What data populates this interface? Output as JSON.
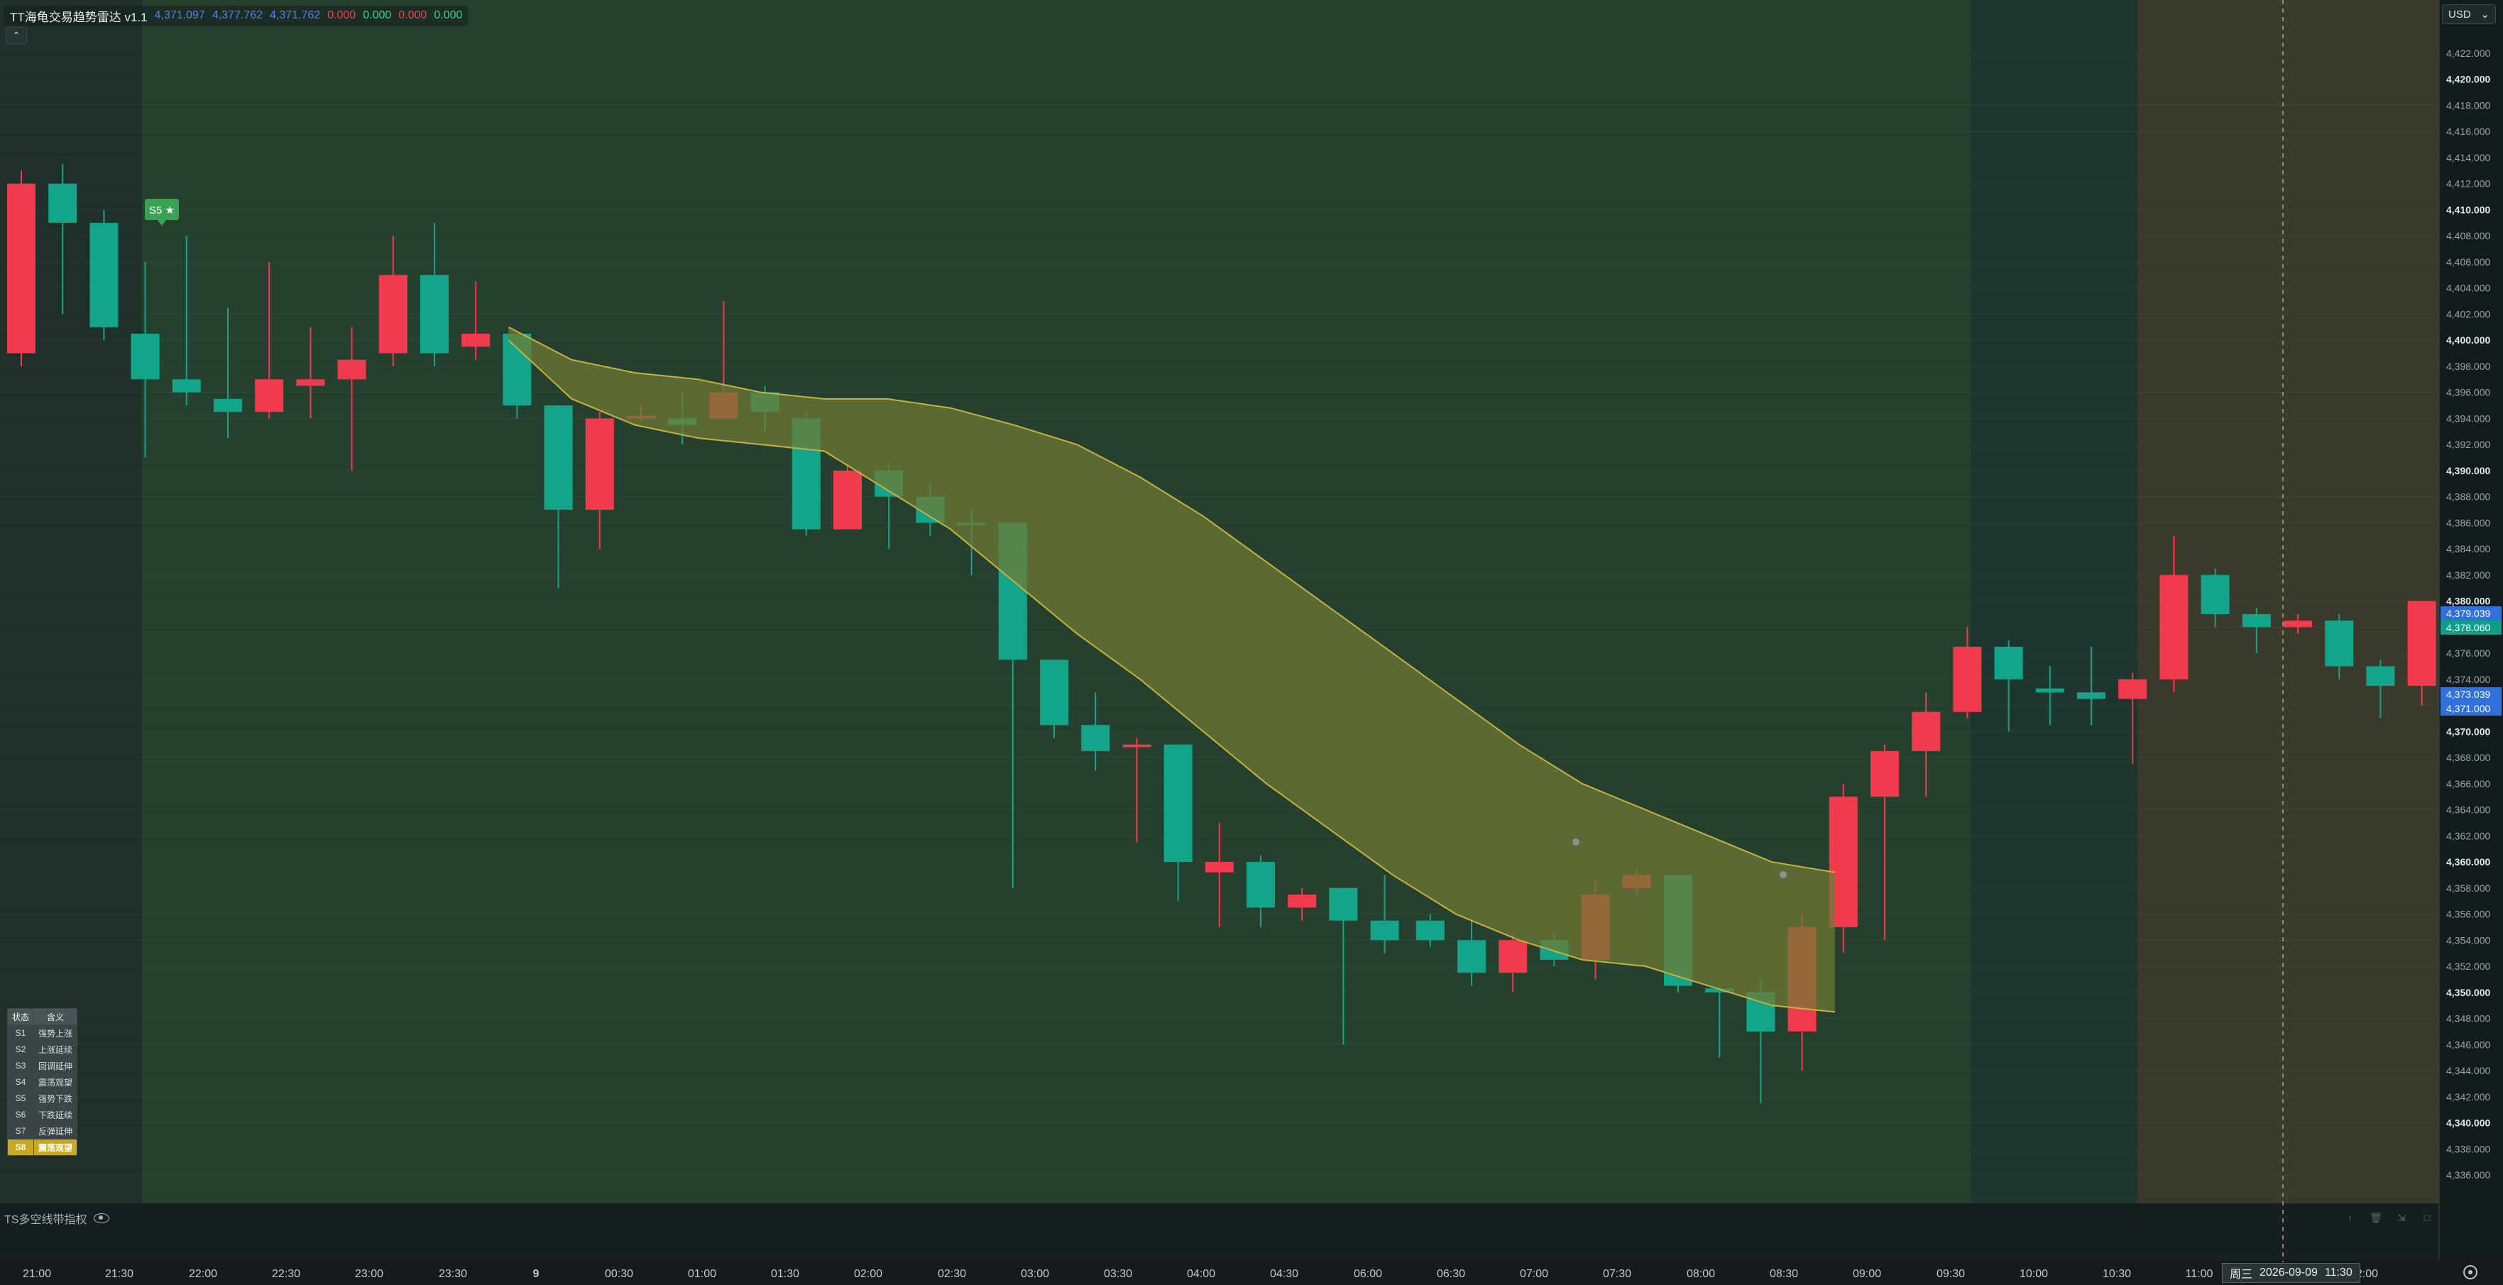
{
  "legend": {
    "title": "TT海龟交易趋势雷达 v1.1",
    "values": [
      "4,371.097",
      "4,377.762",
      "4,371.762",
      "0.000",
      "0.000",
      "0.000",
      "0.000"
    ]
  },
  "currency": {
    "label": "USD",
    "icon": "chevron-down-icon"
  },
  "signal_badge": {
    "label": "S5 ★",
    "color": "#3aa255"
  },
  "state_table": {
    "headers": [
      "状态",
      "含义"
    ],
    "rows": [
      {
        "code": "S1",
        "desc": "强势上涨"
      },
      {
        "code": "S2",
        "desc": "上涨延续"
      },
      {
        "code": "S3",
        "desc": "回调延伸"
      },
      {
        "code": "S4",
        "desc": "震荡观望"
      },
      {
        "code": "S5",
        "desc": "强势下跌"
      },
      {
        "code": "S6",
        "desc": "下跌延续"
      },
      {
        "code": "S7",
        "desc": "反弹延伸"
      },
      {
        "code": "S8",
        "desc": "震荡观望",
        "highlight": true
      }
    ]
  },
  "indicator": {
    "name": "TS多空线带指权"
  },
  "price_scale": {
    "min": 4336.0,
    "max": 4422.0,
    "step": 2,
    "bold_ticks": [
      4350,
      4360,
      4370,
      4380,
      4390,
      4400,
      4410,
      4420,
      4340
    ]
  },
  "price_tags": [
    {
      "value": "4,379.039",
      "color": "#2f6fde"
    },
    {
      "value": "4,378.060",
      "color": "#0e9f85"
    },
    {
      "value": "4,373.039",
      "color": "#2f6fde"
    },
    {
      "value": "4,371.000",
      "color": "#2f6fde"
    }
  ],
  "time_axis": {
    "labels": [
      "21:00",
      "21:30",
      "22:00",
      "22:30",
      "23:00",
      "23:30",
      "9",
      "00:30",
      "01:00",
      "01:30",
      "02:00",
      "02:30",
      "03:00",
      "03:30",
      "04:00",
      "04:30",
      "06:00",
      "06:30",
      "07:00",
      "07:30",
      "08:00",
      "08:30",
      "09:00",
      "09:30",
      "10:00",
      "10:30",
      "11:00",
      "12:00"
    ],
    "cursor_day": "周三",
    "cursor_date": "2026-09-09",
    "cursor_time": "11:30"
  },
  "colors": {
    "up": "#12a589",
    "down": "#f23a4d",
    "band_fill": "#6f7a33",
    "band_line": "#c7b23e"
  },
  "chart_data": {
    "type": "candlestick",
    "time_step_minutes": 30,
    "candles": [
      {
        "t": "20:30",
        "o": 4412.0,
        "h": 4413.0,
        "l": 4398.0,
        "c": 4399.0
      },
      {
        "t": "21:00",
        "o": 4409.0,
        "h": 4413.5,
        "l": 4402.0,
        "c": 4412.0
      },
      {
        "t": "21:15",
        "o": 4401.0,
        "h": 4410.0,
        "l": 4400.0,
        "c": 4409.0
      },
      {
        "t": "21:30",
        "o": 4397.0,
        "h": 4406.0,
        "l": 4391.0,
        "c": 4400.5
      },
      {
        "t": "21:45",
        "o": 4396.0,
        "h": 4408.0,
        "l": 4395.0,
        "c": 4397.0
      },
      {
        "t": "22:00",
        "o": 4394.5,
        "h": 4402.5,
        "l": 4392.5,
        "c": 4395.5
      },
      {
        "t": "22:15",
        "o": 4397.0,
        "h": 4406.0,
        "l": 4394.0,
        "c": 4394.5
      },
      {
        "t": "22:30",
        "o": 4397.0,
        "h": 4401.0,
        "l": 4394.0,
        "c": 4396.5
      },
      {
        "t": "22:45",
        "o": 4398.5,
        "h": 4401.0,
        "l": 4390.0,
        "c": 4397.0
      },
      {
        "t": "23:00",
        "o": 4405.0,
        "h": 4408.0,
        "l": 4398.0,
        "c": 4399.0
      },
      {
        "t": "23:15",
        "o": 4399.0,
        "h": 4409.0,
        "l": 4398.0,
        "c": 4405.0
      },
      {
        "t": "23:30",
        "o": 4400.5,
        "h": 4404.5,
        "l": 4398.5,
        "c": 4399.5
      },
      {
        "t": "23:45",
        "o": 4395.0,
        "h": 4400.5,
        "l": 4394.0,
        "c": 4400.5
      },
      {
        "t": "00:00",
        "o": 4387.0,
        "h": 4395.0,
        "l": 4381.0,
        "c": 4395.0
      },
      {
        "t": "00:15",
        "o": 4394.0,
        "h": 4394.5,
        "l": 4384.0,
        "c": 4387.0
      },
      {
        "t": "00:30",
        "o": 4394.2,
        "h": 4395.0,
        "l": 4393.8,
        "c": 4394.0
      },
      {
        "t": "00:45",
        "o": 4393.5,
        "h": 4396.0,
        "l": 4392.0,
        "c": 4394.0
      },
      {
        "t": "01:00",
        "o": 4396.0,
        "h": 4403.0,
        "l": 4394.0,
        "c": 4394.0
      },
      {
        "t": "01:15",
        "o": 4394.5,
        "h": 4396.5,
        "l": 4393.0,
        "c": 4396.0
      },
      {
        "t": "01:30",
        "o": 4385.5,
        "h": 4394.5,
        "l": 4385.0,
        "c": 4394.0
      },
      {
        "t": "01:45",
        "o": 4390.0,
        "h": 4390.5,
        "l": 4385.5,
        "c": 4385.5
      },
      {
        "t": "02:00",
        "o": 4388.0,
        "h": 4390.5,
        "l": 4384.0,
        "c": 4390.0
      },
      {
        "t": "02:15",
        "o": 4386.0,
        "h": 4389.0,
        "l": 4385.0,
        "c": 4388.0
      },
      {
        "t": "02:30",
        "o": 4386.0,
        "h": 4387.0,
        "l": 4382.0,
        "c": 4386.0
      },
      {
        "t": "02:45",
        "o": 4375.5,
        "h": 4386.0,
        "l": 4358.0,
        "c": 4386.0
      },
      {
        "t": "03:00",
        "o": 4370.5,
        "h": 4375.5,
        "l": 4369.5,
        "c": 4375.5
      },
      {
        "t": "03:15",
        "o": 4368.5,
        "h": 4373.0,
        "l": 4367.0,
        "c": 4370.5
      },
      {
        "t": "03:30",
        "o": 4369.0,
        "h": 4369.5,
        "l": 4361.5,
        "c": 4368.8
      },
      {
        "t": "03:45",
        "o": 4360.0,
        "h": 4369.0,
        "l": 4357.0,
        "c": 4369.0
      },
      {
        "t": "04:00",
        "o": 4360.0,
        "h": 4363.0,
        "l": 4355.0,
        "c": 4359.2
      },
      {
        "t": "04:15",
        "o": 4356.5,
        "h": 4360.5,
        "l": 4355.0,
        "c": 4360.0
      },
      {
        "t": "04:30",
        "o": 4357.5,
        "h": 4358.0,
        "l": 4355.5,
        "c": 4356.5
      },
      {
        "t": "04:45",
        "o": 4355.5,
        "h": 4358.0,
        "l": 4346.0,
        "c": 4358.0
      },
      {
        "t": "05:00",
        "o": 4354.0,
        "h": 4359.0,
        "l": 4353.0,
        "c": 4355.5
      },
      {
        "t": "06:00",
        "o": 4354.0,
        "h": 4356.0,
        "l": 4353.5,
        "c": 4355.5
      },
      {
        "t": "06:15",
        "o": 4351.5,
        "h": 4355.5,
        "l": 4350.5,
        "c": 4354.0
      },
      {
        "t": "06:30",
        "o": 4354.0,
        "h": 4354.5,
        "l": 4350.0,
        "c": 4351.5
      },
      {
        "t": "06:45",
        "o": 4352.5,
        "h": 4354.5,
        "l": 4352.0,
        "c": 4354.0
      },
      {
        "t": "07:00",
        "o": 4357.5,
        "h": 4358.5,
        "l": 4351.0,
        "c": 4352.5
      },
      {
        "t": "07:15",
        "o": 4359.0,
        "h": 4359.5,
        "l": 4357.5,
        "c": 4358.0
      },
      {
        "t": "07:30",
        "o": 4350.5,
        "h": 4359.0,
        "l": 4350.0,
        "c": 4359.0
      },
      {
        "t": "07:45",
        "o": 4350.0,
        "h": 4350.5,
        "l": 4345.0,
        "c": 4350.3
      },
      {
        "t": "08:00",
        "o": 4347.0,
        "h": 4351.0,
        "l": 4341.5,
        "c": 4350.0
      },
      {
        "t": "08:15",
        "o": 4355.0,
        "h": 4356.0,
        "l": 4344.0,
        "c": 4347.0
      },
      {
        "t": "08:30",
        "o": 4365.0,
        "h": 4366.0,
        "l": 4353.0,
        "c": 4355.0
      },
      {
        "t": "08:45",
        "o": 4368.5,
        "h": 4369.0,
        "l": 4354.0,
        "c": 4365.0
      },
      {
        "t": "09:00",
        "o": 4371.5,
        "h": 4373.0,
        "l": 4365.0,
        "c": 4368.5
      },
      {
        "t": "09:15",
        "o": 4376.5,
        "h": 4378.0,
        "l": 4371.0,
        "c": 4371.5
      },
      {
        "t": "09:30",
        "o": 4374.0,
        "h": 4377.0,
        "l": 4370.0,
        "c": 4376.5
      },
      {
        "t": "09:45",
        "o": 4373.0,
        "h": 4375.0,
        "l": 4370.5,
        "c": 4373.3
      },
      {
        "t": "10:00",
        "o": 4372.5,
        "h": 4376.5,
        "l": 4370.5,
        "c": 4373.0
      },
      {
        "t": "10:15",
        "o": 4374.0,
        "h": 4374.5,
        "l": 4367.5,
        "c": 4372.5
      },
      {
        "t": "10:30",
        "o": 4382.0,
        "h": 4385.0,
        "l": 4373.0,
        "c": 4374.0
      },
      {
        "t": "10:45",
        "o": 4379.0,
        "h": 4382.5,
        "l": 4378.0,
        "c": 4382.0
      },
      {
        "t": "11:00",
        "o": 4378.0,
        "h": 4379.5,
        "l": 4376.0,
        "c": 4379.0
      },
      {
        "t": "11:15",
        "o": 4378.5,
        "h": 4379.0,
        "l": 4377.5,
        "c": 4378.0
      },
      {
        "t": "11:30",
        "o": 4375.0,
        "h": 4379.0,
        "l": 4374.0,
        "c": 4378.5
      },
      {
        "t": "11:45",
        "o": 4373.5,
        "h": 4375.5,
        "l": 4371.0,
        "c": 4375.0
      },
      {
        "t": "12:00",
        "o": 4380.0,
        "h": 4380.0,
        "l": 4372.0,
        "c": 4373.5
      }
    ],
    "band": {
      "upper": [
        4401,
        4398.5,
        4397.5,
        4397,
        4396,
        4395.5,
        4395.5,
        4394.8,
        4393.5,
        4392,
        4389.5,
        4386.5,
        4383,
        4379.5,
        4376,
        4372.5,
        4369,
        4366,
        4364,
        4362,
        4360,
        4359.2
      ],
      "lower": [
        4400,
        4395.5,
        4393.5,
        4392.5,
        4392,
        4391.5,
        4388.5,
        4385.5,
        4381.5,
        4377.5,
        4374,
        4370,
        4366,
        4362.5,
        4359,
        4356,
        4354,
        4352.5,
        4352,
        4350.5,
        4349,
        4348.5
      ],
      "start_index": 12,
      "end_index": 44
    }
  }
}
